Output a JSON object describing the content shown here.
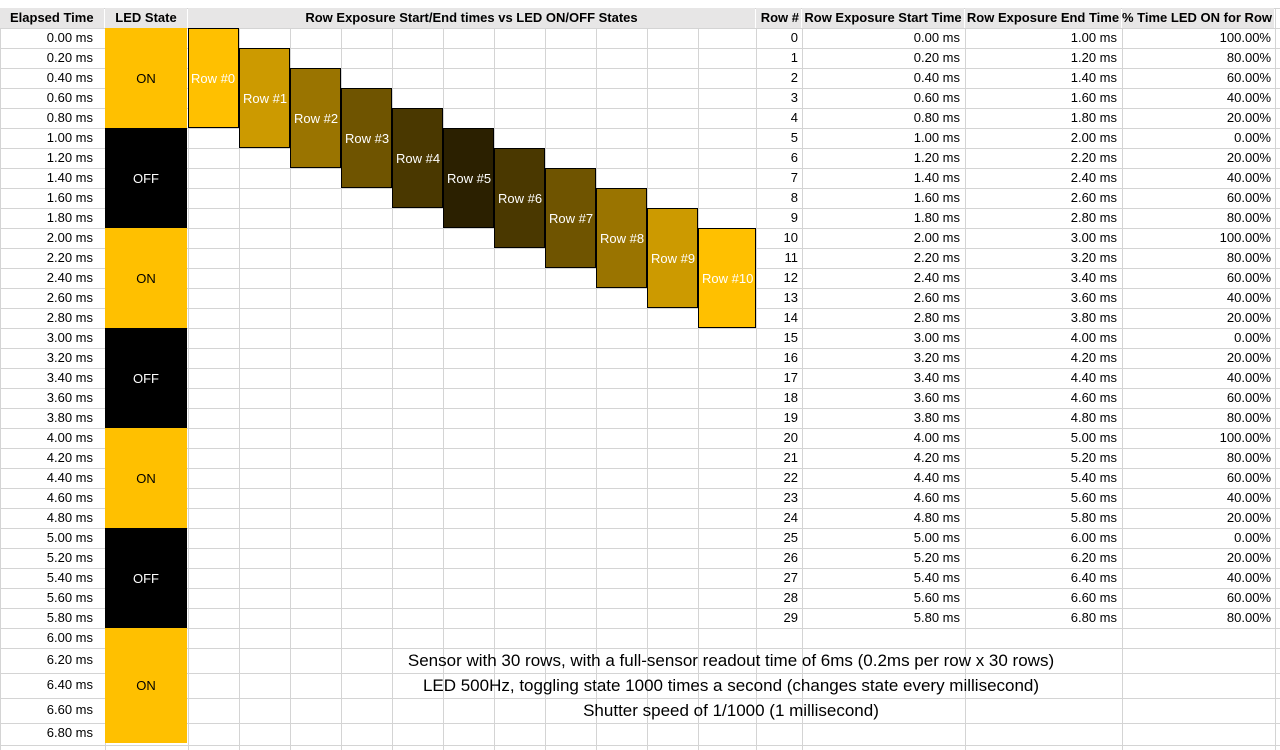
{
  "headers": {
    "elapsed": "Elapsed Time",
    "led": "LED State",
    "chart_title": "Row Exposure Start/End times vs LED ON/OFF States",
    "row_num": "Row #",
    "start": "Row Exposure Start Time",
    "end": "Row Exposure End Time",
    "pct": "% Time LED ON for Row"
  },
  "elapsed_times": [
    "0.00 ms",
    "0.20 ms",
    "0.40 ms",
    "0.60 ms",
    "0.80 ms",
    "1.00 ms",
    "1.20 ms",
    "1.40 ms",
    "1.60 ms",
    "1.80 ms",
    "2.00 ms",
    "2.20 ms",
    "2.40 ms",
    "2.60 ms",
    "2.80 ms",
    "3.00 ms",
    "3.20 ms",
    "3.40 ms",
    "3.60 ms",
    "3.80 ms",
    "4.00 ms",
    "4.20 ms",
    "4.40 ms",
    "4.60 ms",
    "4.80 ms",
    "5.00 ms",
    "5.20 ms",
    "5.40 ms",
    "5.60 ms",
    "5.80 ms",
    "6.00 ms",
    "6.20 ms",
    "6.40 ms",
    "6.60 ms",
    "6.80 ms"
  ],
  "led_states": [
    "ON",
    "OFF",
    "ON",
    "OFF",
    "ON",
    "OFF",
    "ON"
  ],
  "colors": {
    "on": "#ffc000",
    "off": "#000000",
    "header_bg": "#e7e6e6",
    "grid": "#d4d4d4"
  },
  "exposure_rows": [
    {
      "label": "Row #0",
      "color": "#ffc000"
    },
    {
      "label": "Row #1",
      "color": "#cc9a00"
    },
    {
      "label": "Row #2",
      "color": "#9a7400"
    },
    {
      "label": "Row #3",
      "color": "#6f5400"
    },
    {
      "label": "Row #4",
      "color": "#4a3800"
    },
    {
      "label": "Row #5",
      "color": "#2b2000"
    },
    {
      "label": "Row #6",
      "color": "#4a3800"
    },
    {
      "label": "Row #7",
      "color": "#6f5400"
    },
    {
      "label": "Row #8",
      "color": "#9a7400"
    },
    {
      "label": "Row #9",
      "color": "#cc9a00"
    },
    {
      "label": "Row #10",
      "color": "#ffc000"
    }
  ],
  "table": [
    [
      "0",
      "0.00 ms",
      "1.00 ms",
      "100.00%"
    ],
    [
      "1",
      "0.20 ms",
      "1.20 ms",
      "80.00%"
    ],
    [
      "2",
      "0.40 ms",
      "1.40 ms",
      "60.00%"
    ],
    [
      "3",
      "0.60 ms",
      "1.60 ms",
      "40.00%"
    ],
    [
      "4",
      "0.80 ms",
      "1.80 ms",
      "20.00%"
    ],
    [
      "5",
      "1.00 ms",
      "2.00 ms",
      "0.00%"
    ],
    [
      "6",
      "1.20 ms",
      "2.20 ms",
      "20.00%"
    ],
    [
      "7",
      "1.40 ms",
      "2.40 ms",
      "40.00%"
    ],
    [
      "8",
      "1.60 ms",
      "2.60 ms",
      "60.00%"
    ],
    [
      "9",
      "1.80 ms",
      "2.80 ms",
      "80.00%"
    ],
    [
      "10",
      "2.00 ms",
      "3.00 ms",
      "100.00%"
    ],
    [
      "11",
      "2.20 ms",
      "3.20 ms",
      "80.00%"
    ],
    [
      "12",
      "2.40 ms",
      "3.40 ms",
      "60.00%"
    ],
    [
      "13",
      "2.60 ms",
      "3.60 ms",
      "40.00%"
    ],
    [
      "14",
      "2.80 ms",
      "3.80 ms",
      "20.00%"
    ],
    [
      "15",
      "3.00 ms",
      "4.00 ms",
      "0.00%"
    ],
    [
      "16",
      "3.20 ms",
      "4.20 ms",
      "20.00%"
    ],
    [
      "17",
      "3.40 ms",
      "4.40 ms",
      "40.00%"
    ],
    [
      "18",
      "3.60 ms",
      "4.60 ms",
      "60.00%"
    ],
    [
      "19",
      "3.80 ms",
      "4.80 ms",
      "80.00%"
    ],
    [
      "20",
      "4.00 ms",
      "5.00 ms",
      "100.00%"
    ],
    [
      "21",
      "4.20 ms",
      "5.20 ms",
      "80.00%"
    ],
    [
      "22",
      "4.40 ms",
      "5.40 ms",
      "60.00%"
    ],
    [
      "23",
      "4.60 ms",
      "5.60 ms",
      "40.00%"
    ],
    [
      "24",
      "4.80 ms",
      "5.80 ms",
      "20.00%"
    ],
    [
      "25",
      "5.00 ms",
      "6.00 ms",
      "0.00%"
    ],
    [
      "26",
      "5.20 ms",
      "6.20 ms",
      "20.00%"
    ],
    [
      "27",
      "5.40 ms",
      "6.40 ms",
      "40.00%"
    ],
    [
      "28",
      "5.60 ms",
      "6.60 ms",
      "60.00%"
    ],
    [
      "29",
      "5.80 ms",
      "6.80 ms",
      "80.00%"
    ]
  ],
  "notes": [
    "Sensor with 30 rows, with a full-sensor readout time of 6ms (0.2ms per row x 30 rows)",
    "LED 500Hz, toggling state 1000 times a second (changes state every millisecond)",
    "Shutter speed of 1/1000 (1 millisecond)"
  ]
}
